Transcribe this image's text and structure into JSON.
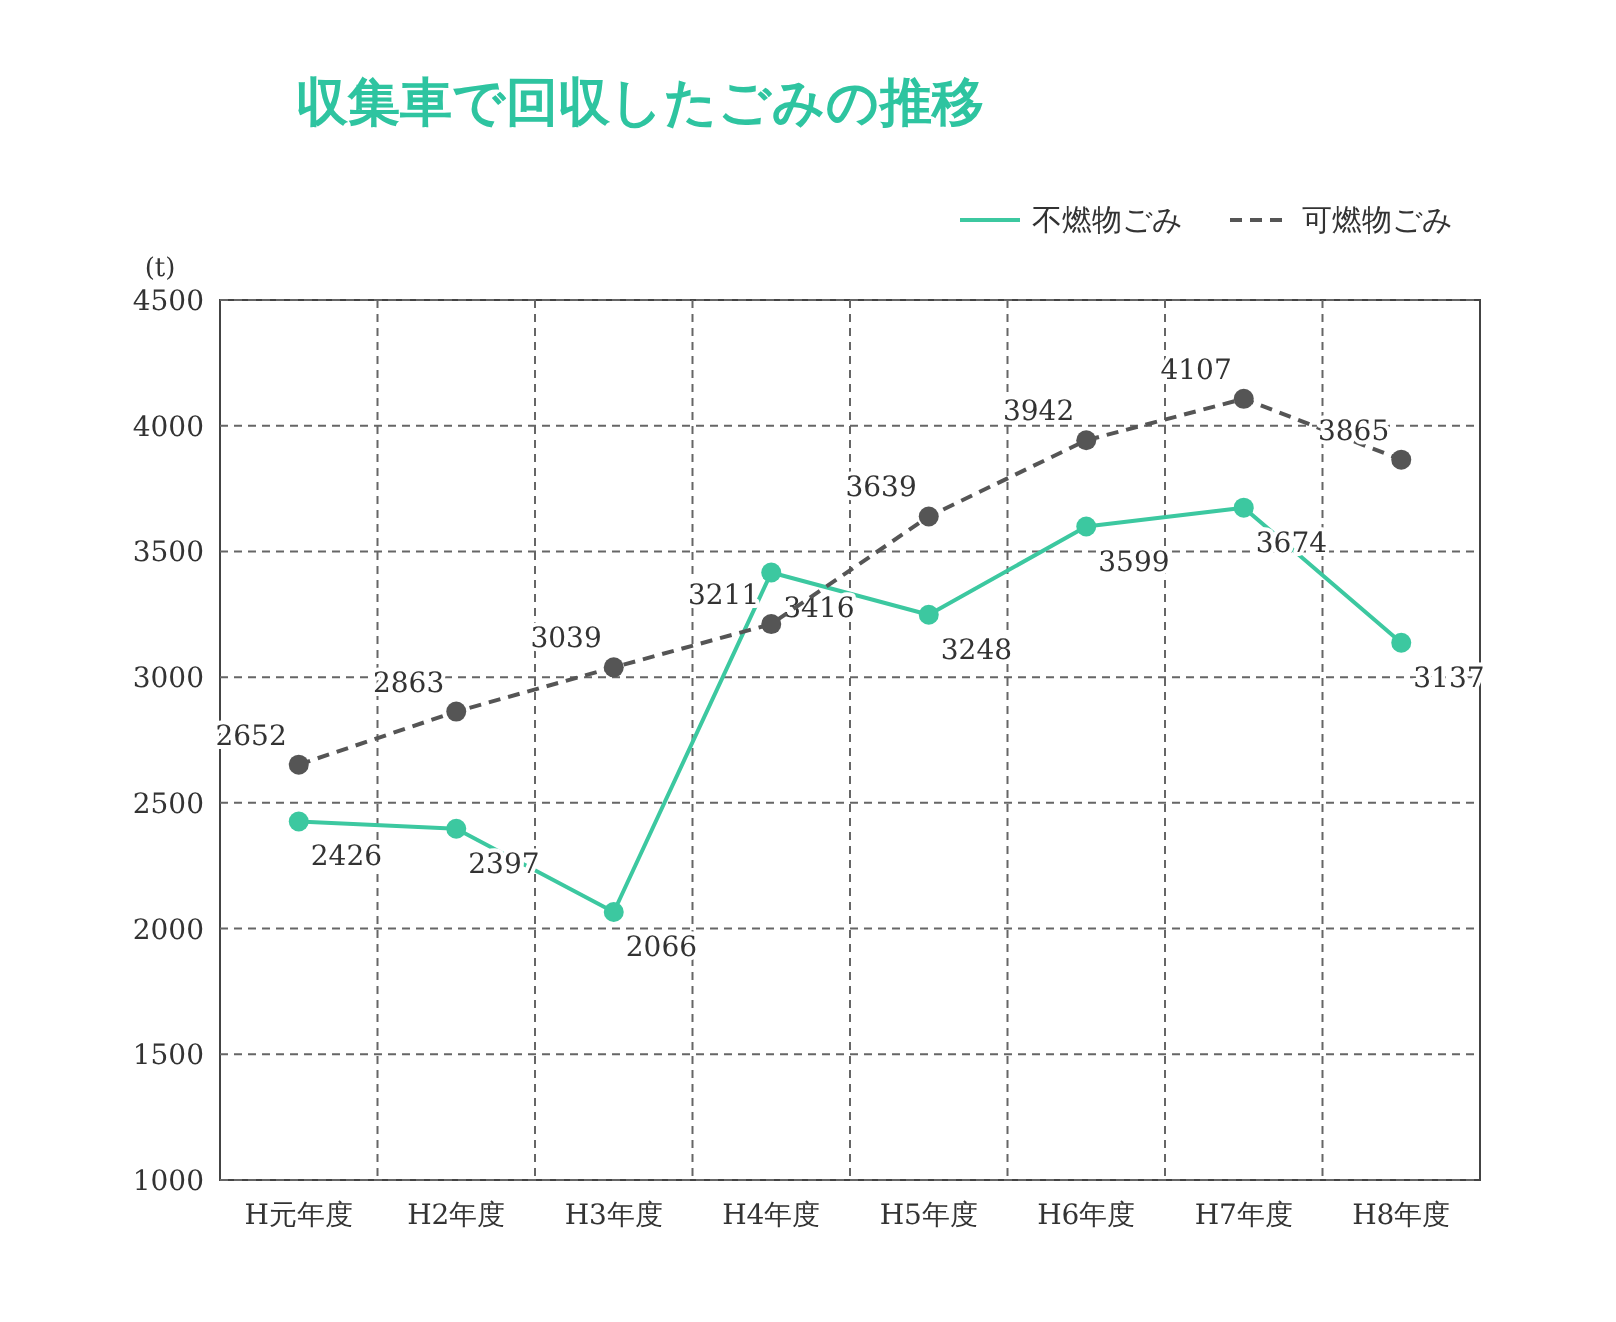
{
  "chart_data": {
    "type": "line",
    "title": "収集車で回収したごみの推移",
    "ylabel": "(t)",
    "categories": [
      "H元年度",
      "H2年度",
      "H3年度",
      "H4年度",
      "H5年度",
      "H6年度",
      "H7年度",
      "H8年度"
    ],
    "series": [
      {
        "name": "不燃物ごみ",
        "color": "#3cc8a0",
        "line_style": "solid",
        "values": [
          2426,
          2397,
          2066,
          3416,
          3248,
          3599,
          3674,
          3137
        ]
      },
      {
        "name": "可燃物ごみ",
        "color": "#555555",
        "line_style": "dashed",
        "values": [
          2652,
          2863,
          3039,
          3211,
          3639,
          3942,
          4107,
          3865
        ]
      }
    ],
    "ylim": [
      1000,
      4500
    ],
    "yticks": [
      1000,
      1500,
      2000,
      2500,
      3000,
      3500,
      4000,
      4500
    ],
    "grid": true,
    "legend": "top right",
    "marker": "circle",
    "data_labels": true
  }
}
